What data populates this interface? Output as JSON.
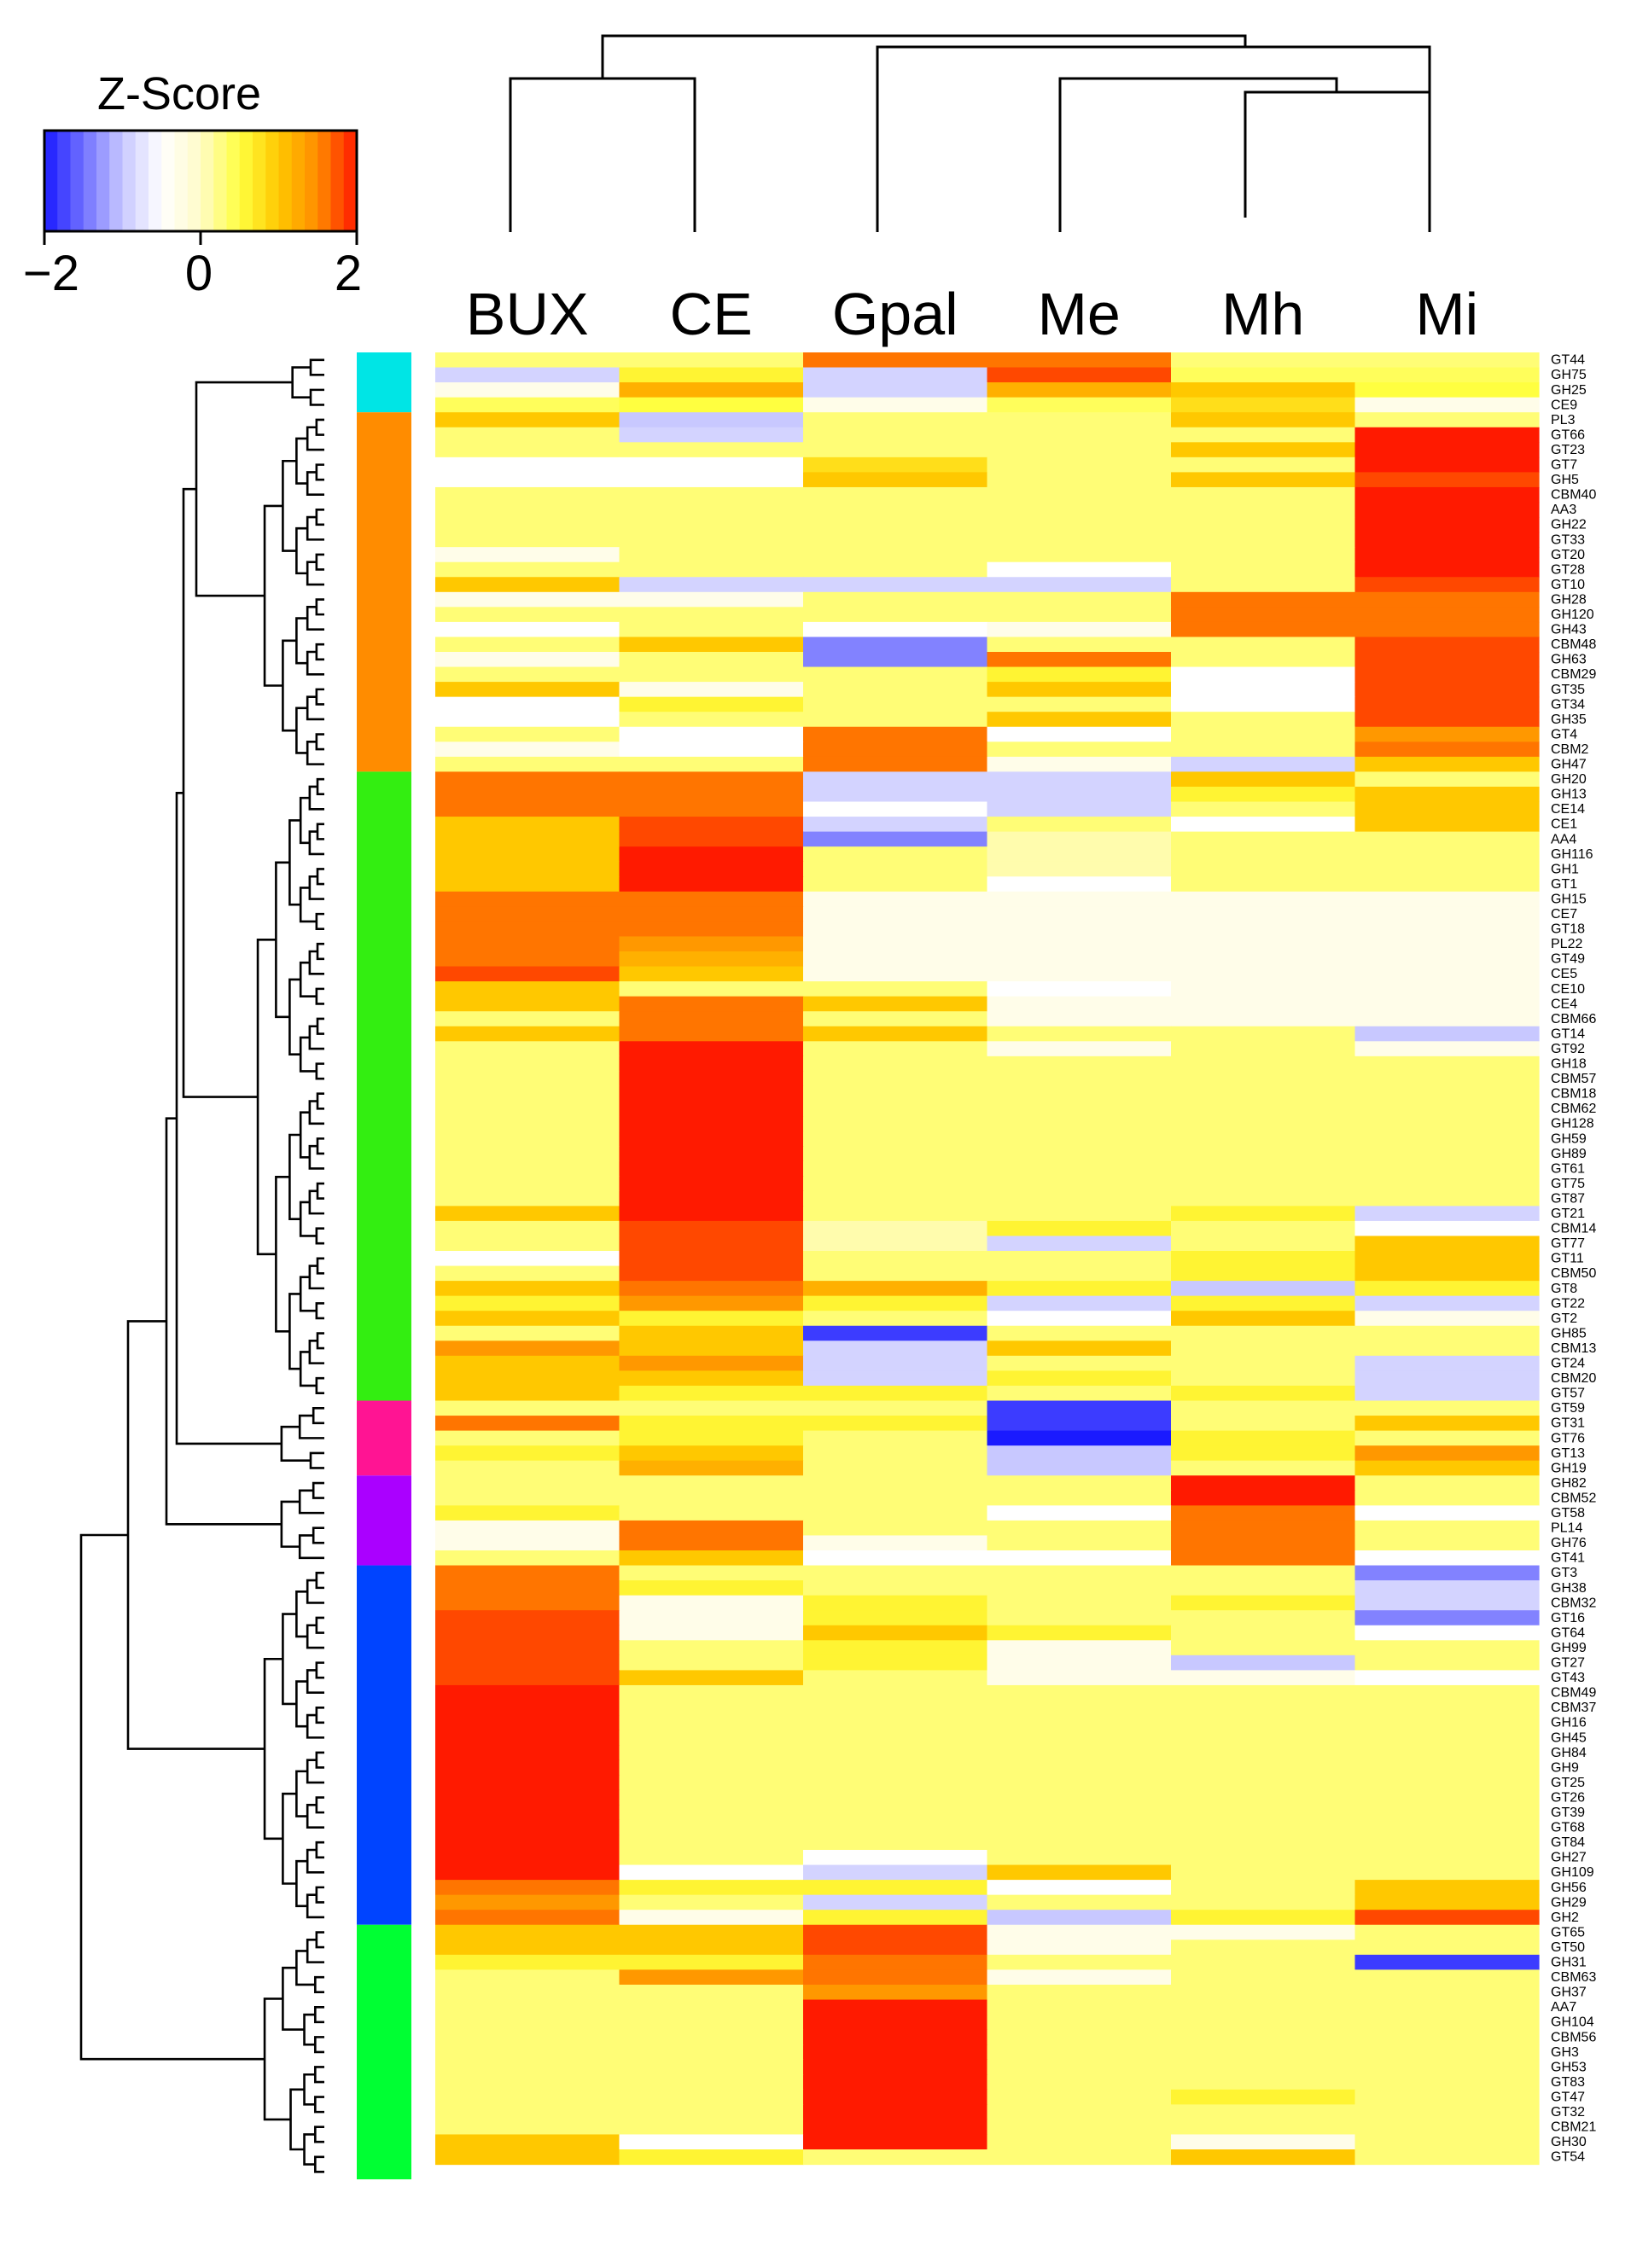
{
  "chart_data": {
    "type": "heatmap",
    "title": "",
    "legend_title": "Z-Score",
    "legend_ticks": [
      "−2",
      "0",
      "2"
    ],
    "legend_range": [
      -2,
      2
    ],
    "legend_colors": [
      "#1a1aff",
      "#7070ff",
      "#c8c8ff",
      "#ffffff",
      "#fffbc8",
      "#ffff40",
      "#ffc800",
      "#ff8c00",
      "#ff1a00"
    ],
    "columns": [
      "BUX",
      "CE",
      "Gpal",
      "Me",
      "Mh",
      "Mi"
    ],
    "rows": [
      "GT44",
      "GH75",
      "GH25",
      "CE9",
      "PL3",
      "GT66",
      "GT23",
      "GT7",
      "GH5",
      "CBM40",
      "AA3",
      "GH22",
      "GT33",
      "GT20",
      "GT28",
      "GT10",
      "GH28",
      "GH120",
      "GH43",
      "CBM48",
      "GH63",
      "CBM29",
      "GT35",
      "GT34",
      "GH35",
      "GT4",
      "CBM2",
      "GH47",
      "GH20",
      "GH13",
      "CE14",
      "CE1",
      "AA4",
      "GH116",
      "GH1",
      "GT1",
      "GH15",
      "CE7",
      "GT18",
      "PL22",
      "GT49",
      "CE5",
      "CE10",
      "CE4",
      "CBM66",
      "GT14",
      "GT92",
      "GH18",
      "CBM57",
      "CBM18",
      "CBM62",
      "GH128",
      "GH59",
      "GH89",
      "GT61",
      "GT75",
      "GT87",
      "GT21",
      "CBM14",
      "GT77",
      "GT11",
      "CBM50",
      "GT8",
      "GT22",
      "GT2",
      "GH85",
      "CBM13",
      "GT24",
      "CBM20",
      "GT57",
      "GT59",
      "GT31",
      "GT76",
      "GT13",
      "GH19",
      "GH82",
      "CBM52",
      "GT58",
      "PL14",
      "GH76",
      "GT41",
      "GT3",
      "GH38",
      "CBM32",
      "GT16",
      "GT64",
      "GH99",
      "GT27",
      "GT43",
      "CBM49",
      "CBM37",
      "GH16",
      "GH45",
      "GH84",
      "GH9",
      "GT25",
      "GT26",
      "GT39",
      "GT68",
      "GT84",
      "GH27",
      "GH109",
      "GH56",
      "GH29",
      "GH2",
      "GT65",
      "GT50",
      "GH31",
      "CBM63",
      "GH37",
      "AA7",
      "GH104",
      "CBM56",
      "GH3",
      "GH53",
      "GT83",
      "GT47",
      "GT32",
      "CBM21",
      "GH30",
      "GT54"
    ],
    "values": [
      [
        0.3,
        0.3,
        1.6,
        1.6,
        0.3,
        0.3
      ],
      [
        -0.9,
        0.6,
        -0.9,
        1.8,
        0.4,
        0.4
      ],
      [
        -0.3,
        1.2,
        -0.9,
        1.2,
        1.0,
        0.5
      ],
      [
        0.4,
        0.5,
        -0.3,
        0.4,
        0.8,
        -0.3
      ],
      [
        1.0,
        -1.0,
        0.3,
        0.3,
        1.0,
        0.3
      ],
      [
        0.3,
        -0.9,
        0.3,
        0.3,
        0.3,
        2.0
      ],
      [
        0.3,
        0.3,
        0.3,
        0.3,
        1.0,
        2.0
      ],
      [
        -0.5,
        -0.5,
        0.8,
        0.3,
        0.3,
        2.0
      ],
      [
        -0.5,
        -0.5,
        1.0,
        0.3,
        1.0,
        1.8
      ],
      [
        0.3,
        0.3,
        0.3,
        0.3,
        0.3,
        2.0
      ],
      [
        0.3,
        0.3,
        0.3,
        0.3,
        0.3,
        2.0
      ],
      [
        0.3,
        0.3,
        0.3,
        0.3,
        0.3,
        2.0
      ],
      [
        0.3,
        0.3,
        0.3,
        0.3,
        0.3,
        2.0
      ],
      [
        -0.3,
        0.3,
        0.3,
        0.3,
        0.3,
        2.0
      ],
      [
        0.3,
        0.3,
        0.3,
        -0.5,
        0.3,
        2.0
      ],
      [
        1.0,
        -0.9,
        -0.9,
        -0.9,
        0.3,
        1.8
      ],
      [
        -0.3,
        -0.3,
        0.3,
        0.3,
        1.6,
        1.6
      ],
      [
        0.3,
        0.3,
        0.3,
        0.3,
        1.6,
        1.6
      ],
      [
        -0.5,
        0.3,
        -0.5,
        -0.3,
        1.6,
        1.6
      ],
      [
        0.3,
        1.0,
        -1.4,
        0.3,
        0.3,
        1.8
      ],
      [
        -0.3,
        0.3,
        -1.4,
        1.6,
        0.3,
        1.8
      ],
      [
        0.3,
        0.3,
        0.3,
        0.6,
        -0.5,
        1.8
      ],
      [
        1.0,
        -0.3,
        0.3,
        1.0,
        -0.5,
        1.8
      ],
      [
        -0.5,
        0.6,
        0.3,
        0.3,
        -0.5,
        1.8
      ],
      [
        -0.5,
        0.3,
        0.3,
        1.0,
        0.3,
        1.8
      ],
      [
        0.3,
        -0.5,
        1.6,
        -0.5,
        0.3,
        1.4
      ],
      [
        -0.3,
        -0.5,
        1.6,
        0.3,
        0.3,
        1.6
      ],
      [
        0.3,
        0.3,
        1.6,
        -0.3,
        -0.9,
        1.0
      ],
      [
        1.6,
        1.6,
        -0.9,
        -0.9,
        1.0,
        0.3
      ],
      [
        1.6,
        1.6,
        -0.9,
        -0.9,
        0.6,
        1.0
      ],
      [
        1.6,
        1.6,
        -0.5,
        -0.9,
        0.3,
        1.0
      ],
      [
        1.0,
        1.8,
        -0.9,
        0.3,
        -0.5,
        1.0
      ],
      [
        1.0,
        1.8,
        -1.4,
        0.1,
        0.3,
        0.3
      ],
      [
        1.0,
        2.0,
        0.3,
        0.1,
        0.3,
        0.3
      ],
      [
        1.0,
        2.0,
        0.3,
        0.1,
        0.3,
        0.3
      ],
      [
        1.0,
        2.0,
        0.3,
        -0.5,
        0.3,
        0.3
      ],
      [
        1.6,
        1.6,
        -0.3,
        -0.3,
        -0.3,
        -0.3
      ],
      [
        1.6,
        1.6,
        -0.3,
        -0.3,
        -0.3,
        -0.3
      ],
      [
        1.6,
        1.6,
        -0.3,
        -0.3,
        -0.3,
        -0.3
      ],
      [
        1.6,
        1.4,
        -0.3,
        -0.3,
        -0.3,
        -0.3
      ],
      [
        1.6,
        1.2,
        -0.3,
        -0.3,
        -0.3,
        -0.3
      ],
      [
        1.8,
        1.0,
        -0.3,
        -0.3,
        -0.3,
        -0.3
      ],
      [
        1.0,
        0.3,
        0.3,
        -0.5,
        -0.3,
        -0.3
      ],
      [
        1.0,
        1.6,
        1.0,
        -0.3,
        -0.3,
        -0.3
      ],
      [
        0.3,
        1.6,
        0.3,
        -0.3,
        -0.3,
        -0.3
      ],
      [
        1.0,
        1.6,
        1.0,
        0.3,
        0.3,
        -1.0
      ],
      [
        0.3,
        2.0,
        0.3,
        -0.3,
        0.3,
        -0.3
      ],
      [
        0.3,
        2.0,
        0.3,
        0.3,
        0.3,
        0.3
      ],
      [
        0.3,
        2.0,
        0.3,
        0.3,
        0.3,
        0.3
      ],
      [
        0.3,
        2.0,
        0.3,
        0.3,
        0.3,
        0.3
      ],
      [
        0.3,
        2.0,
        0.3,
        0.3,
        0.3,
        0.3
      ],
      [
        0.3,
        2.0,
        0.3,
        0.3,
        0.3,
        0.3
      ],
      [
        0.3,
        2.0,
        0.3,
        0.3,
        0.3,
        0.3
      ],
      [
        0.3,
        2.0,
        0.3,
        0.3,
        0.3,
        0.3
      ],
      [
        0.3,
        2.0,
        0.3,
        0.3,
        0.3,
        0.3
      ],
      [
        0.3,
        2.0,
        0.3,
        0.3,
        0.3,
        0.3
      ],
      [
        0.3,
        2.0,
        0.3,
        0.3,
        0.3,
        0.3
      ],
      [
        1.0,
        2.0,
        0.3,
        0.3,
        0.6,
        -0.9
      ],
      [
        0.3,
        1.8,
        0.1,
        0.6,
        0.3,
        -0.5
      ],
      [
        0.3,
        1.8,
        0.1,
        -0.9,
        0.3,
        1.0
      ],
      [
        -0.5,
        1.8,
        0.3,
        0.3,
        0.6,
        1.0
      ],
      [
        0.3,
        1.8,
        0.3,
        0.3,
        0.6,
        1.0
      ],
      [
        1.0,
        1.6,
        1.2,
        0.6,
        -1.0,
        0.6
      ],
      [
        0.6,
        1.4,
        0.6,
        -0.9,
        0.6,
        -0.9
      ],
      [
        1.0,
        0.6,
        0.3,
        -0.5,
        1.0,
        -0.3
      ],
      [
        0.3,
        1.0,
        -1.8,
        0.3,
        0.3,
        0.3
      ],
      [
        1.4,
        1.0,
        -0.9,
        1.0,
        0.3,
        0.3
      ],
      [
        1.0,
        1.4,
        -0.9,
        0.3,
        0.3,
        -0.9
      ],
      [
        1.0,
        1.0,
        -0.9,
        0.6,
        0.3,
        -0.9
      ],
      [
        1.0,
        0.6,
        0.6,
        0.3,
        0.6,
        -0.9
      ],
      [
        0.3,
        0.3,
        0.3,
        -1.8,
        0.3,
        0.3
      ],
      [
        1.6,
        0.6,
        0.6,
        -1.8,
        0.3,
        1.0
      ],
      [
        0.3,
        0.6,
        0.3,
        -2.0,
        0.6,
        0.3
      ],
      [
        0.6,
        1.0,
        0.3,
        -1.0,
        0.6,
        1.4
      ],
      [
        0.3,
        1.2,
        0.3,
        -1.0,
        0.3,
        1.0
      ],
      [
        0.3,
        0.3,
        0.3,
        0.3,
        2.0,
        0.3
      ],
      [
        0.3,
        0.3,
        0.3,
        0.3,
        2.0,
        0.3
      ],
      [
        0.6,
        0.3,
        0.3,
        -0.5,
        1.6,
        -0.5
      ],
      [
        -0.3,
        1.6,
        0.3,
        0.3,
        1.6,
        0.3
      ],
      [
        -0.3,
        1.6,
        -0.3,
        0.3,
        1.6,
        0.3
      ],
      [
        0.3,
        1.0,
        -0.5,
        -0.5,
        1.6,
        -0.5
      ],
      [
        1.6,
        0.3,
        0.3,
        0.3,
        0.3,
        -1.4
      ],
      [
        1.6,
        0.6,
        0.3,
        0.3,
        0.3,
        -0.9
      ],
      [
        1.6,
        -0.3,
        0.6,
        0.3,
        0.6,
        -0.9
      ],
      [
        1.8,
        -0.3,
        0.6,
        0.3,
        0.3,
        -1.4
      ],
      [
        1.8,
        -0.3,
        1.0,
        0.6,
        0.3,
        -0.5
      ],
      [
        1.8,
        0.3,
        0.6,
        -0.3,
        0.3,
        0.3
      ],
      [
        1.8,
        0.3,
        0.6,
        -0.3,
        -1.0,
        0.3
      ],
      [
        1.8,
        1.0,
        0.3,
        -0.3,
        -0.3,
        -0.5
      ],
      [
        2.0,
        0.3,
        0.3,
        0.3,
        0.3,
        0.3
      ],
      [
        2.0,
        0.3,
        0.3,
        0.3,
        0.3,
        0.3
      ],
      [
        2.0,
        0.3,
        0.3,
        0.3,
        0.3,
        0.3
      ],
      [
        2.0,
        0.3,
        0.3,
        0.3,
        0.3,
        0.3
      ],
      [
        2.0,
        0.3,
        0.3,
        0.3,
        0.3,
        0.3
      ],
      [
        2.0,
        0.3,
        0.3,
        0.3,
        0.3,
        0.3
      ],
      [
        2.0,
        0.3,
        0.3,
        0.3,
        0.3,
        0.3
      ],
      [
        2.0,
        0.3,
        0.3,
        0.3,
        0.3,
        0.3
      ],
      [
        2.0,
        0.3,
        0.3,
        0.3,
        0.3,
        0.3
      ],
      [
        2.0,
        0.3,
        0.3,
        0.3,
        0.3,
        0.3
      ],
      [
        2.0,
        0.3,
        0.3,
        0.3,
        0.3,
        0.3
      ],
      [
        2.0,
        0.3,
        -0.5,
        0.3,
        0.3,
        0.3
      ],
      [
        2.0,
        -0.5,
        -0.9,
        1.0,
        0.3,
        0.3
      ],
      [
        1.6,
        0.6,
        0.6,
        -0.5,
        0.3,
        1.0
      ],
      [
        1.4,
        0.3,
        -0.9,
        0.3,
        0.3,
        1.0
      ],
      [
        1.6,
        -0.3,
        0.6,
        -1.0,
        0.6,
        1.8
      ],
      [
        1.0,
        1.0,
        1.8,
        -0.3,
        -0.3,
        0.3
      ],
      [
        1.0,
        1.0,
        1.8,
        -0.3,
        0.3,
        0.3
      ],
      [
        0.6,
        0.6,
        1.6,
        0.3,
        0.3,
        -1.8
      ],
      [
        0.3,
        1.4,
        1.6,
        -0.3,
        0.3,
        0.3
      ],
      [
        0.3,
        0.3,
        1.4,
        0.3,
        0.3,
        0.3
      ],
      [
        0.3,
        0.3,
        2.0,
        0.3,
        0.3,
        0.3
      ],
      [
        0.3,
        0.3,
        2.0,
        0.3,
        0.3,
        0.3
      ],
      [
        0.3,
        0.3,
        2.0,
        0.3,
        0.3,
        0.3
      ],
      [
        0.3,
        0.3,
        2.0,
        0.3,
        0.3,
        0.3
      ],
      [
        0.3,
        0.3,
        2.0,
        0.3,
        0.3,
        0.3
      ],
      [
        0.3,
        0.3,
        2.0,
        0.3,
        0.3,
        0.3
      ],
      [
        0.3,
        0.3,
        2.0,
        0.3,
        0.6,
        0.3
      ],
      [
        0.3,
        0.3,
        2.0,
        0.3,
        0.3,
        0.3
      ],
      [
        0.3,
        0.3,
        2.0,
        0.3,
        0.3,
        0.3
      ],
      [
        1.0,
        -0.5,
        2.0,
        0.3,
        -0.3,
        0.3
      ],
      [
        1.0,
        0.6,
        0.3,
        0.3,
        1.0,
        0.3
      ]
    ],
    "clusters": [
      {
        "start": 0,
        "end": 3,
        "color": "#00e5e5"
      },
      {
        "start": 4,
        "end": 27,
        "color": "#ff8c00"
      },
      {
        "start": 28,
        "end": 69,
        "color": "#33ee11"
      },
      {
        "start": 70,
        "end": 74,
        "color": "#ff1493"
      },
      {
        "start": 75,
        "end": 80,
        "color": "#aa00ff"
      },
      {
        "start": 81,
        "end": 104,
        "color": "#0044ff"
      },
      {
        "start": 105,
        "end": 121,
        "color": "#00ff33"
      }
    ]
  }
}
